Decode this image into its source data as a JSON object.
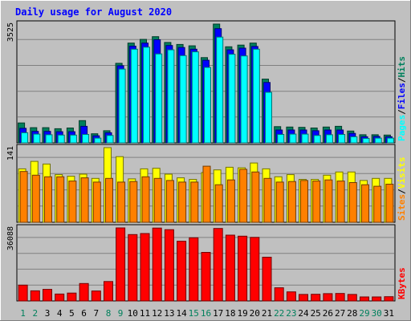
{
  "colors": {
    "background": "#C0C0C0",
    "plot_background": "#C0C0C0",
    "title": "#0000FF",
    "grid": "#808080",
    "hits": "#00805C",
    "files": "#0000FF",
    "pages": "#00FFFF",
    "visits": "#FFFF00",
    "sites": "#FF8000",
    "kbytes": "#FF0000",
    "weekday_label": "#000000",
    "weekend_label": "#00805C"
  },
  "chart_data": {
    "type": "bar",
    "title": "Daily usage for August 2020",
    "categories": [
      "1",
      "2",
      "3",
      "4",
      "5",
      "6",
      "7",
      "8",
      "9",
      "10",
      "11",
      "12",
      "13",
      "14",
      "15",
      "16",
      "17",
      "18",
      "19",
      "20",
      "21",
      "22",
      "23",
      "24",
      "25",
      "26",
      "27",
      "28",
      "29",
      "30",
      "31"
    ],
    "weekend_days": [
      "1",
      "2",
      "8",
      "9",
      "15",
      "16",
      "22",
      "23",
      "29",
      "30"
    ],
    "panels": [
      {
        "name": "hits-files-pages",
        "max_label": "3525",
        "ylim": [
          0,
          3525
        ],
        "legend": [
          {
            "label": "Pages",
            "color": "#00FFFF"
          },
          {
            "label": "Files",
            "color": "#0000FF"
          },
          {
            "label": "Hits",
            "color": "#00805C"
          }
        ],
        "series": [
          {
            "name": "Hits",
            "values": [
              590,
              450,
              450,
              420,
              440,
              660,
              270,
              360,
              2360,
              2960,
              3070,
              3150,
              2980,
              2920,
              2880,
              2530,
              3525,
              2850,
              2900,
              2960,
              1890,
              480,
              470,
              460,
              440,
              470,
              490,
              350,
              240,
              240,
              230
            ]
          },
          {
            "name": "Files",
            "values": [
              430,
              340,
              340,
              330,
              330,
              490,
              210,
              300,
              2290,
              2870,
              2960,
              3060,
              2890,
              2830,
              2780,
              2450,
              3390,
              2760,
              2810,
              2860,
              1790,
              380,
              380,
              380,
              360,
              380,
              380,
              280,
              180,
              190,
              180
            ]
          },
          {
            "name": "Pages",
            "values": [
              300,
              260,
              240,
              230,
              230,
              250,
              140,
              220,
              2190,
              2780,
              2840,
              2640,
              2760,
              2590,
              2700,
              2240,
              3140,
              2630,
              2580,
              2780,
              1500,
              250,
              260,
              260,
              220,
              240,
              250,
              180,
              130,
              140,
              140
            ]
          }
        ]
      },
      {
        "name": "visits-sites",
        "max_label": "141",
        "ylim": [
          0,
          141
        ],
        "legend": [
          {
            "label": "Sites",
            "color": "#FF8000"
          },
          {
            "label": "Visits",
            "color": "#FFFF00"
          }
        ],
        "series": [
          {
            "name": "Visits",
            "values": [
              101,
              115,
              110,
              90,
              87,
              91,
              83,
              141,
              124,
              82,
              101,
              102,
              91,
              84,
              81,
              94,
              99,
              104,
              103,
              112,
              101,
              86,
              90,
              81,
              81,
              89,
              95,
              95,
              79,
              83,
              83
            ]
          },
          {
            "name": "Sites",
            "values": [
              96,
              89,
              86,
              86,
              78,
              84,
              76,
              83,
              76,
              77,
              86,
              83,
              79,
              76,
              76,
              106,
              71,
              80,
              100,
              95,
              83,
              76,
              77,
              79,
              78,
              80,
              78,
              75,
              71,
              68,
              72
            ]
          }
        ]
      },
      {
        "name": "kbytes",
        "max_label": "36088",
        "ylim": [
          0,
          36088
        ],
        "legend": [
          {
            "label": "KBytes",
            "color": "#FF0000"
          }
        ],
        "series": [
          {
            "name": "KBytes",
            "values": [
              7800,
              5000,
              5700,
              3400,
              3900,
              8600,
              4900,
              9600,
              36088,
              32800,
              33300,
              36000,
              35200,
              29500,
              31200,
              24000,
              35800,
              32500,
              32000,
              31400,
              21600,
              6500,
              4500,
              3200,
              3300,
              3600,
              3700,
              3200,
              2000,
              2000,
              2100
            ]
          }
        ]
      }
    ],
    "grid": true
  }
}
